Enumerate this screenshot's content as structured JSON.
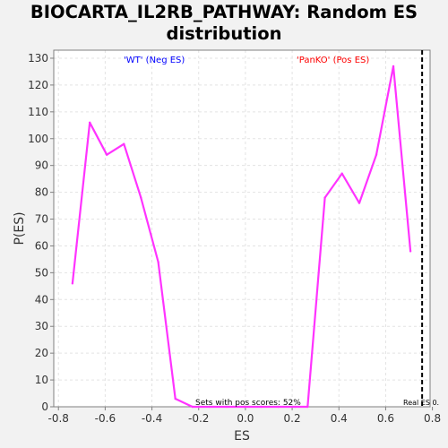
{
  "chart_data": {
    "type": "line",
    "title_lines": [
      "BIOCARTA_IL2RB_PATHWAY: Random ES",
      "distribution"
    ],
    "xlabel": "ES",
    "ylabel": "P(ES)",
    "xlim": [
      -0.82,
      0.79
    ],
    "ylim": [
      0,
      133
    ],
    "xticks": [
      -0.8,
      -0.6,
      -0.4,
      -0.2,
      0.0,
      0.2,
      0.4,
      0.6,
      0.8
    ],
    "xtick_labels": [
      "-0.8",
      "-0.6",
      "-0.4",
      "-0.2",
      "0.0",
      "0.2",
      "0.4",
      "0.6",
      "0.8"
    ],
    "yticks": [
      0,
      10,
      20,
      30,
      40,
      50,
      60,
      70,
      80,
      90,
      100,
      110,
      120,
      130
    ],
    "grid": true,
    "series": [
      {
        "color": "#ff33ff",
        "x": [
          -0.74,
          -0.666,
          -0.593,
          -0.52,
          -0.447,
          -0.373,
          -0.3,
          -0.227,
          -0.153,
          -0.08,
          -0.007,
          0.067,
          0.14,
          0.213,
          0.266,
          0.34,
          0.413,
          0.487,
          0.56,
          0.633,
          0.706
        ],
        "y": [
          46,
          106,
          94,
          98,
          78,
          54,
          3,
          0,
          0,
          0,
          0,
          0,
          0,
          0,
          0,
          78,
          87,
          76,
          94,
          127,
          58
        ]
      }
    ],
    "annotations": {
      "neg_label": "'WT' (Neg ES)",
      "neg_color": "#0000ff",
      "pos_label": "'PanKO' (Pos ES)",
      "pos_color": "#ff0000",
      "pos_scores_note": "Sets with pos scores: 52%",
      "real_es_label": "Real ES 0.",
      "real_es_value": 0.756
    }
  }
}
